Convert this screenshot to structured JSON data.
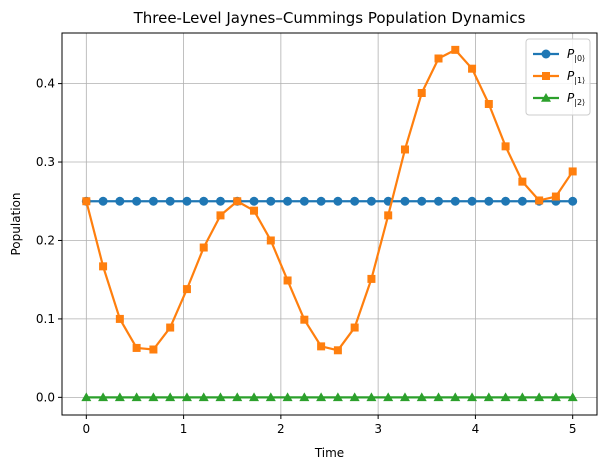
{
  "chart_data": {
    "type": "line",
    "title": "Three-Level Jaynes–Cummings Population Dynamics",
    "xlabel": "Time",
    "ylabel": "Population",
    "xlim": [
      -0.25,
      5.25
    ],
    "ylim": [
      -0.0225,
      0.4645
    ],
    "xticks": [
      0,
      1,
      2,
      3,
      4,
      5
    ],
    "xtick_labels": [
      "0",
      "1",
      "2",
      "3",
      "4",
      "5"
    ],
    "yticks": [
      0.0,
      0.1,
      0.2,
      0.3,
      0.4
    ],
    "ytick_labels": [
      "0.0",
      "0.1",
      "0.2",
      "0.3",
      "0.4"
    ],
    "grid": true,
    "legend_position": "top-right",
    "x": [
      0,
      0.1724,
      0.3448,
      0.5172,
      0.6897,
      0.8621,
      1.0345,
      1.2069,
      1.3793,
      1.5517,
      1.7241,
      1.8966,
      2.069,
      2.2414,
      2.4138,
      2.5862,
      2.7586,
      2.931,
      3.1034,
      3.2759,
      3.4483,
      3.6207,
      3.7931,
      3.9655,
      4.1379,
      4.3103,
      4.4828,
      4.6552,
      4.8276,
      5.0
    ],
    "series": [
      {
        "name": "P",
        "subscript": "|0⟩",
        "color": "#1f77b4",
        "marker": "circle",
        "values": [
          0.25,
          0.25,
          0.25,
          0.25,
          0.25,
          0.25,
          0.25,
          0.25,
          0.25,
          0.25,
          0.25,
          0.25,
          0.25,
          0.25,
          0.25,
          0.25,
          0.25,
          0.25,
          0.25,
          0.25,
          0.25,
          0.25,
          0.25,
          0.25,
          0.25,
          0.25,
          0.25,
          0.25,
          0.25,
          0.25
        ]
      },
      {
        "name": "P",
        "subscript": "|1⟩",
        "color": "#ff7f0e",
        "marker": "square",
        "values": [
          0.25,
          0.167,
          0.1,
          0.063,
          0.061,
          0.089,
          0.138,
          0.191,
          0.232,
          0.25,
          0.238,
          0.2,
          0.149,
          0.099,
          0.065,
          0.06,
          0.089,
          0.151,
          0.232,
          0.316,
          0.388,
          0.432,
          0.443,
          0.419,
          0.374,
          0.32,
          0.275,
          0.251,
          0.256,
          0.288
        ]
      },
      {
        "name": "P",
        "subscript": "|2⟩",
        "color": "#2ca02c",
        "marker": "triangle",
        "values": [
          0.0,
          0.0,
          0.0,
          0.0,
          0.0,
          0.0,
          0.0,
          0.0,
          0.0,
          0.0,
          0.0,
          0.0,
          0.0,
          0.0,
          0.0,
          0.0,
          0.0,
          0.0,
          0.0,
          0.0,
          0.0,
          0.0,
          0.0,
          0.0,
          0.0,
          0.0,
          0.0,
          0.0,
          0.0,
          0.0
        ]
      }
    ]
  }
}
